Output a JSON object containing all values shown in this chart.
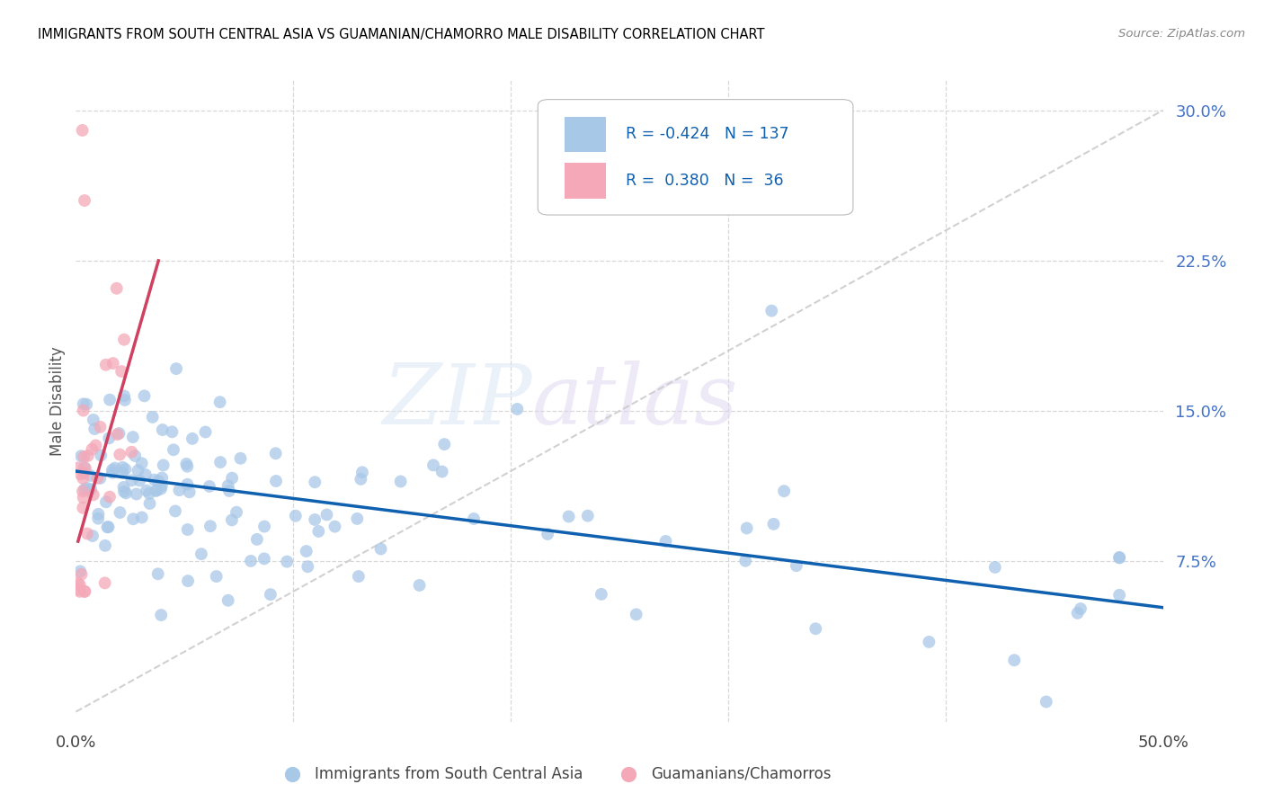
{
  "title": "IMMIGRANTS FROM SOUTH CENTRAL ASIA VS GUAMANIAN/CHAMORRO MALE DISABILITY CORRELATION CHART",
  "source": "Source: ZipAtlas.com",
  "ylabel": "Male Disability",
  "xlim": [
    0.0,
    0.5
  ],
  "ylim": [
    -0.005,
    0.315
  ],
  "legend_blue_R": "-0.424",
  "legend_blue_N": "137",
  "legend_pink_R": "0.380",
  "legend_pink_N": "36",
  "legend_label_blue": "Immigrants from South Central Asia",
  "legend_label_pink": "Guamanians/Chamorros",
  "blue_scatter_color": "#a8c8e8",
  "pink_scatter_color": "#f4a8b8",
  "blue_line_color": "#1060b0",
  "pink_line_color": "#d04060",
  "diag_color": "#cccccc",
  "grid_color": "#d8d8d8",
  "ytick_color": "#4472c4",
  "blue_trend_x0": 0.0,
  "blue_trend_x1": 0.5,
  "blue_trend_y0": 0.12,
  "blue_trend_y1": 0.052,
  "pink_trend_x0": 0.001,
  "pink_trend_x1": 0.038,
  "pink_trend_y0": 0.085,
  "pink_trend_y1": 0.225
}
